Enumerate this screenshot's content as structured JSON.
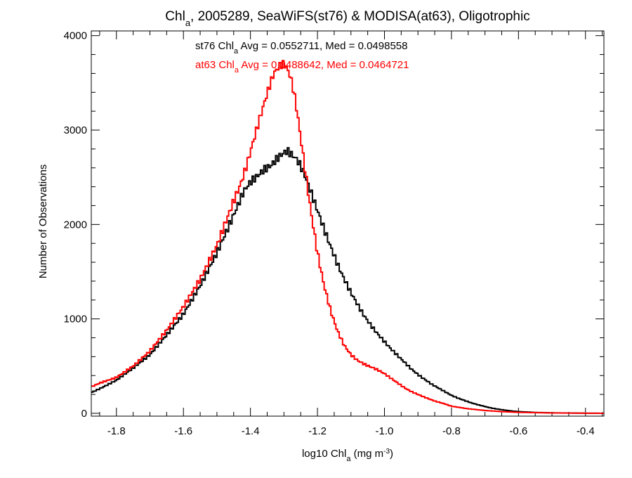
{
  "chart_data": {
    "type": "line",
    "title": {
      "main": "Chl",
      "sub": "a",
      "rest": ", 2005289, SeaWiFS(st76) & MODISA(at63), Oligotrophic"
    },
    "xlabel": {
      "pre": "log10 Chl",
      "sub": "a",
      "mid": " (mg m",
      "sup": "-3",
      "post": ")"
    },
    "ylabel": "Number of Observations",
    "xlim": [
      -1.875,
      -0.345
    ],
    "ylim": [
      -30,
      4050
    ],
    "xticks": {
      "values": [
        -1.8,
        -1.6,
        -1.4,
        -1.2,
        -1.0,
        -0.8,
        -0.6,
        -0.4
      ],
      "labels": [
        "-1.8",
        "-1.6",
        "-1.4",
        "-1.2",
        "-1.0",
        "-0.8",
        "-0.6",
        "-0.4"
      ]
    },
    "yticks": {
      "values": [
        0,
        1000,
        2000,
        3000,
        4000
      ],
      "labels": [
        "0",
        "1000",
        "2000",
        "3000",
        "4000"
      ]
    },
    "minor_x_step": 0.05,
    "minor_y_step": 200,
    "annotations": [
      {
        "pre": "st76 Chl",
        "sub": "a",
        "post": " Avg = 0.0552711, Med = 0.0498558",
        "color": "#000000"
      },
      {
        "pre": "at63 Chl",
        "sub": "a",
        "post": " Avg = 0.0488642, Med = 0.0464721",
        "color": "#ff0000"
      }
    ],
    "series": [
      {
        "color": "#000000",
        "x": [
          -1.875,
          -1.85,
          -1.8,
          -1.75,
          -1.7,
          -1.65,
          -1.6,
          -1.55,
          -1.5,
          -1.45,
          -1.42,
          -1.4,
          -1.38,
          -1.36,
          -1.34,
          -1.32,
          -1.3,
          -1.29,
          -1.28,
          -1.27,
          -1.26,
          -1.25,
          -1.24,
          -1.22,
          -1.2,
          -1.18,
          -1.16,
          -1.14,
          -1.12,
          -1.1,
          -1.08,
          -1.06,
          -1.04,
          -1.02,
          -1.0,
          -0.98,
          -0.96,
          -0.94,
          -0.92,
          -0.9,
          -0.88,
          -0.86,
          -0.84,
          -0.82,
          -0.8,
          -0.78,
          -0.76,
          -0.74,
          -0.72,
          -0.7,
          -0.68,
          -0.65,
          -0.62,
          -0.6,
          -0.55,
          -0.5,
          -0.45,
          -0.4,
          -0.345
        ],
        "y": [
          220,
          260,
          350,
          480,
          620,
          830,
          1050,
          1350,
          1700,
          2100,
          2350,
          2450,
          2510,
          2580,
          2620,
          2700,
          2760,
          2780,
          2750,
          2720,
          2680,
          2620,
          2540,
          2350,
          2150,
          1950,
          1760,
          1580,
          1420,
          1280,
          1150,
          1030,
          930,
          840,
          760,
          680,
          610,
          540,
          470,
          410,
          360,
          310,
          270,
          230,
          190,
          160,
          135,
          110,
          90,
          72,
          55,
          38,
          24,
          18,
          9,
          5,
          3,
          1,
          0
        ]
      },
      {
        "color": "#ff0000",
        "x": [
          -1.875,
          -1.85,
          -1.8,
          -1.75,
          -1.7,
          -1.65,
          -1.6,
          -1.55,
          -1.5,
          -1.45,
          -1.43,
          -1.41,
          -1.39,
          -1.37,
          -1.35,
          -1.34,
          -1.33,
          -1.32,
          -1.31,
          -1.3,
          -1.29,
          -1.28,
          -1.27,
          -1.26,
          -1.25,
          -1.24,
          -1.22,
          -1.2,
          -1.18,
          -1.16,
          -1.14,
          -1.12,
          -1.1,
          -1.08,
          -1.06,
          -1.04,
          -1.02,
          -1.0,
          -0.98,
          -0.96,
          -0.94,
          -0.92,
          -0.9,
          -0.88,
          -0.85,
          -0.82,
          -0.8,
          -0.75,
          -0.7,
          -0.65,
          -0.6,
          -0.5,
          -0.4,
          -0.345
        ],
        "y": [
          280,
          320,
          380,
          500,
          660,
          880,
          1130,
          1420,
          1780,
          2250,
          2420,
          2640,
          2900,
          3150,
          3390,
          3500,
          3600,
          3650,
          3690,
          3700,
          3650,
          3560,
          3400,
          3180,
          2920,
          2660,
          2150,
          1700,
          1350,
          1080,
          870,
          720,
          620,
          560,
          520,
          490,
          460,
          420,
          370,
          320,
          270,
          230,
          200,
          170,
          130,
          100,
          75,
          48,
          30,
          18,
          10,
          4,
          1,
          0
        ]
      }
    ]
  }
}
